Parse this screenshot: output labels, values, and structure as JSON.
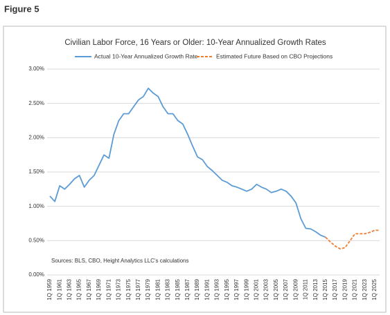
{
  "heading": "Figure 5",
  "chart_data": {
    "type": "line",
    "title": "Civilian Labor Force, 16 Years or Older: 10-Year Annualized Growth Rates",
    "note": "Sources: BLS, CBO, Height Analytics LLC's calculations",
    "categories": [
      "1Q 1959",
      null,
      "1Q 1961",
      null,
      "1Q 1963",
      null,
      "1Q 1965",
      null,
      "1Q 1967",
      null,
      "1Q 1969",
      null,
      "1Q 1971",
      null,
      "1Q 1973",
      null,
      "1Q 1975",
      null,
      "1Q 1977",
      null,
      "1Q 1979",
      null,
      "1Q 1981",
      null,
      "1Q 1983",
      null,
      "1Q 1985",
      null,
      "1Q 1987",
      null,
      "1Q 1989",
      null,
      "1Q 1991",
      null,
      "1Q 1993",
      null,
      "1Q 1995",
      null,
      "1Q 1997",
      null,
      "1Q 1999",
      null,
      "1Q 2001",
      null,
      "1Q 2003",
      null,
      "1Q 2005",
      null,
      "1Q 2007",
      null,
      "1Q 2009",
      null,
      "1Q 2011",
      null,
      "1Q 2013",
      null,
      "1Q 2015",
      null,
      "1Q 2017",
      null,
      "1Q 2019",
      null,
      "1Q 2021",
      null,
      "1Q 2023",
      null,
      "1Q 2025",
      null
    ],
    "series": [
      {
        "name": "Actual 10-Year Annualized Growth Rate",
        "color": "#5b9bd5",
        "dashed": false,
        "values": [
          1.15,
          1.07,
          1.3,
          1.25,
          1.32,
          1.4,
          1.45,
          1.28,
          1.38,
          1.45,
          1.6,
          1.75,
          1.7,
          2.05,
          2.25,
          2.35,
          2.35,
          2.45,
          2.55,
          2.6,
          2.72,
          2.65,
          2.6,
          2.45,
          2.35,
          2.35,
          2.25,
          2.2,
          2.05,
          1.88,
          1.72,
          1.68,
          1.58,
          1.52,
          1.45,
          1.38,
          1.35,
          1.3,
          1.28,
          1.25,
          1.22,
          1.25,
          1.32,
          1.28,
          1.25,
          1.2,
          1.22,
          1.25,
          1.22,
          1.15,
          1.05,
          0.82,
          0.68,
          0.67,
          0.63,
          0.58,
          0.55,
          null,
          null,
          null,
          null,
          null,
          null,
          null,
          null,
          null,
          null,
          null
        ]
      },
      {
        "name": "Estimated Future Based on CBO Projections",
        "color": "#ed7d31",
        "dashed": true,
        "values": [
          null,
          null,
          null,
          null,
          null,
          null,
          null,
          null,
          null,
          null,
          null,
          null,
          null,
          null,
          null,
          null,
          null,
          null,
          null,
          null,
          null,
          null,
          null,
          null,
          null,
          null,
          null,
          null,
          null,
          null,
          null,
          null,
          null,
          null,
          null,
          null,
          null,
          null,
          null,
          null,
          null,
          null,
          null,
          null,
          null,
          null,
          null,
          null,
          null,
          null,
          null,
          null,
          null,
          null,
          null,
          null,
          0.55,
          0.48,
          0.42,
          0.38,
          0.4,
          0.5,
          0.6,
          0.6,
          0.6,
          0.62,
          0.65,
          0.65
        ]
      }
    ],
    "ylim": [
      0,
      3
    ],
    "yticks": [
      {
        "value": 0,
        "label": "0.00%"
      },
      {
        "value": 0.5,
        "label": "0.50%"
      },
      {
        "value": 1,
        "label": "1.00%"
      },
      {
        "value": 1.5,
        "label": "1.50%"
      },
      {
        "value": 2,
        "label": "2.00%"
      },
      {
        "value": 2.5,
        "label": "2.50%"
      },
      {
        "value": 3,
        "label": "3.00%"
      }
    ],
    "grid": true
  }
}
